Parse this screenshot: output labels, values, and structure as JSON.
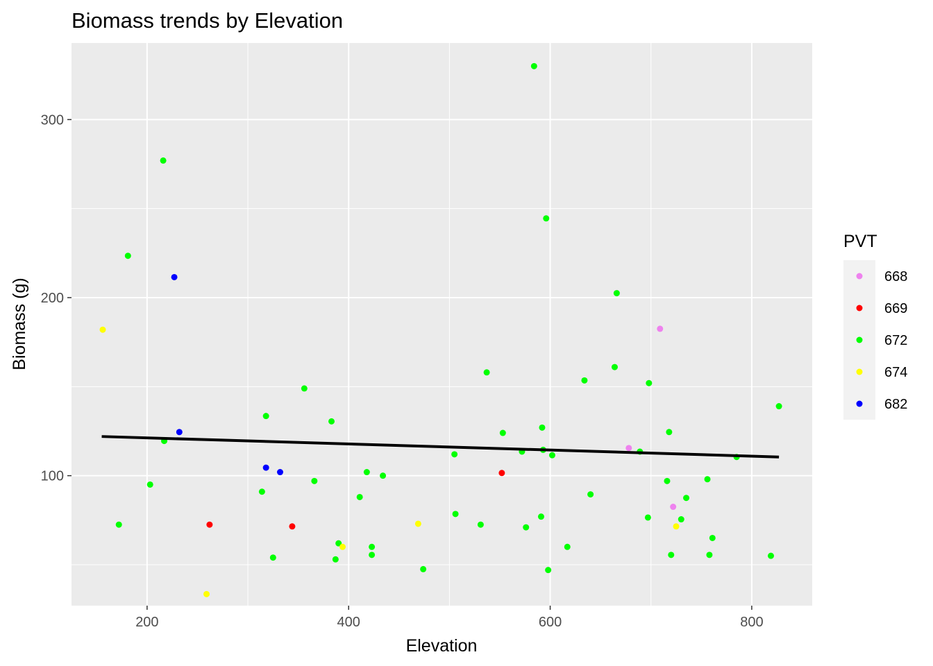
{
  "chart_data": {
    "type": "scatter",
    "title": "Biomass trends by Elevation",
    "xlabel": "Elevation",
    "ylabel": "Biomass (g)",
    "xlim": [
      125,
      860
    ],
    "ylim": [
      27,
      343
    ],
    "x_ticks": [
      200,
      400,
      600,
      800
    ],
    "y_ticks": [
      100,
      200,
      300
    ],
    "x_tick_labels": [
      "200",
      "400",
      "600",
      "800"
    ],
    "y_tick_labels": [
      "100",
      "200",
      "300"
    ],
    "x_minor": [
      300,
      500,
      700
    ],
    "y_minor": [
      50,
      150,
      250
    ],
    "grid": true,
    "panel_background": "#ebebeb",
    "legend": {
      "title": "PVT",
      "position": "right",
      "entries": [
        {
          "label": "668",
          "color": "#ee82ee"
        },
        {
          "label": "669",
          "color": "#ff0000"
        },
        {
          "label": "672",
          "color": "#00ff00"
        },
        {
          "label": "674",
          "color": "#ffff00"
        },
        {
          "label": "682",
          "color": "#0000ff"
        }
      ]
    },
    "trend_line": {
      "x": [
        155,
        827
      ],
      "y": [
        122,
        110.5
      ],
      "color": "#000000"
    },
    "series": [
      {
        "name": "668",
        "color": "#ee82ee",
        "x": [
          678,
          709,
          722
        ],
        "y": [
          115.5,
          182.5,
          82.5
        ]
      },
      {
        "name": "669",
        "color": "#ff0000",
        "x": [
          262,
          344,
          552
        ],
        "y": [
          72.5,
          71.5,
          101.5
        ]
      },
      {
        "name": "672",
        "color": "#00ff00",
        "x": [
          172,
          181,
          203,
          216,
          217,
          314,
          318,
          325,
          356,
          366,
          383,
          387,
          390,
          411,
          418,
          423,
          423,
          434,
          474,
          505,
          506,
          531,
          537,
          553,
          572,
          576,
          584,
          591,
          592,
          593,
          596,
          598,
          602,
          617,
          634,
          640,
          664,
          666,
          689,
          697,
          698,
          716,
          718,
          720,
          730,
          735,
          756,
          758,
          761,
          785,
          819,
          827
        ],
        "y": [
          72.5,
          223.5,
          95,
          277,
          119.5,
          91,
          133.5,
          54,
          149,
          97,
          130.5,
          53,
          62,
          88,
          102,
          55.5,
          60,
          100,
          47.5,
          112,
          78.5,
          72.5,
          158,
          124,
          113.5,
          71,
          330,
          77,
          127,
          114.5,
          244.5,
          47,
          111.5,
          60,
          153.5,
          89.5,
          161,
          202.5,
          113.5,
          76.5,
          152,
          97,
          124.5,
          55.5,
          75.5,
          87.5,
          98,
          55.5,
          65,
          110.5,
          55,
          139
        ]
      },
      {
        "name": "674",
        "color": "#ffff00",
        "x": [
          156,
          259,
          394,
          469,
          725
        ],
        "y": [
          182,
          33.5,
          60,
          73,
          71.5
        ]
      },
      {
        "name": "682",
        "color": "#0000ff",
        "x": [
          227,
          232,
          318,
          332
        ],
        "y": [
          211.5,
          124.5,
          104.5,
          102
        ]
      }
    ]
  }
}
